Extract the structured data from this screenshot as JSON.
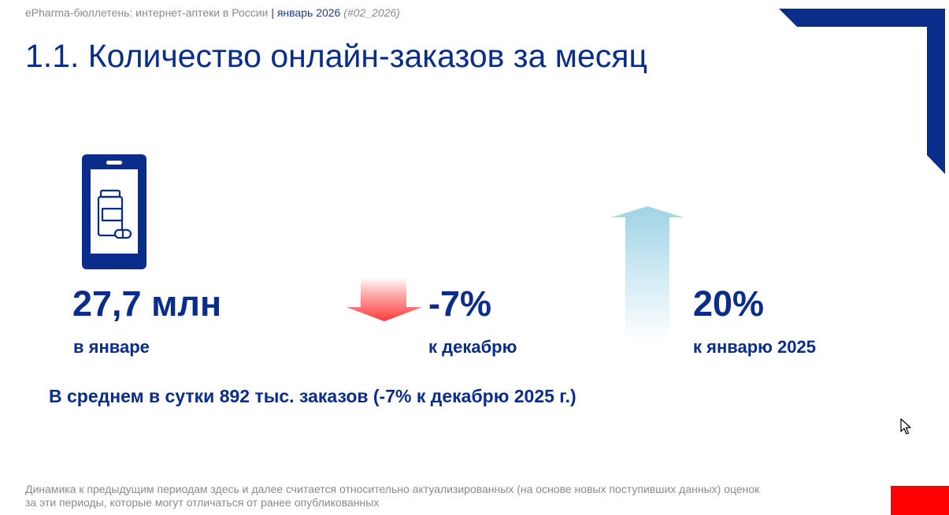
{
  "header": {
    "publication": "ePharma-бюллетень: интернет-аптеки в России",
    "separator": "|",
    "month": "январь 2026",
    "issue": "(#02_2026)"
  },
  "page_title": "1.1. Количество онлайн-заказов за месяц",
  "icons": {
    "phone": "smartphone-pharmacy-icon",
    "down": "arrow-down-icon",
    "up": "arrow-up-icon",
    "cursor": "mouse-cursor-icon"
  },
  "colors": {
    "brand_blue": "#0a2d8c",
    "negative": "#ff4b4b",
    "positive": "#a9d8ea",
    "accent_red": "#ff0000"
  },
  "stats": {
    "total": {
      "value": "27,7 млн",
      "label": "в январе"
    },
    "mom": {
      "value": "-7%",
      "label": "к декабрю"
    },
    "yoy": {
      "value": "20%",
      "label": "к январю 2025"
    }
  },
  "daily_summary": "В среднем в сутки 892 тыс. заказов (-7% к декабрю 2025 г.)",
  "footnote": {
    "line1": "Динамика к предыдущим периодам здесь и далее считается относительно актуализированных (на основе новых поступивших данных) оценок",
    "line2": "за эти периоды, которые могут отличаться от ранее опубликованных"
  }
}
